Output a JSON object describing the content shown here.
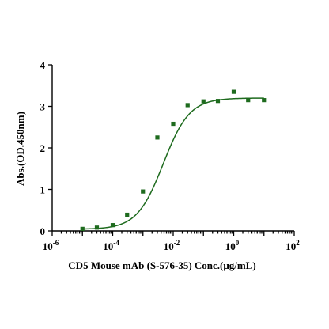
{
  "chart_data": {
    "type": "scatter",
    "title": "",
    "xlabel": "CD5 Mouse mAb (S-576-35) Conc.(μg/mL)",
    "ylabel": "Abs.(OD.450nm)",
    "x_scale": "log10",
    "xlim": [
      1e-06,
      100
    ],
    "ylim": [
      0,
      4
    ],
    "x_tick_labels": [
      {
        "base": "10",
        "exp": "-6",
        "value": 1e-06
      },
      {
        "base": "10",
        "exp": "-4",
        "value": 0.0001
      },
      {
        "base": "10",
        "exp": "-2",
        "value": 0.01
      },
      {
        "base": "10",
        "exp": "0",
        "value": 1
      },
      {
        "base": "10",
        "exp": "2",
        "value": 100
      }
    ],
    "y_ticks": [
      "0",
      "1",
      "2",
      "3",
      "4"
    ],
    "grid": false,
    "legend": "none",
    "colors": {
      "series": "#1e6b1e",
      "axis": "#000000"
    },
    "series": [
      {
        "marker": "square",
        "x": [
          1e-05,
          3e-05,
          0.0001,
          0.0003,
          0.001,
          0.003,
          0.01,
          0.03,
          0.1,
          0.3,
          1,
          3,
          10
        ],
        "y": [
          0.05,
          0.08,
          0.14,
          0.39,
          0.95,
          2.25,
          2.58,
          3.03,
          3.12,
          3.13,
          3.35,
          3.15,
          3.15
        ]
      }
    ],
    "fit_curve": {
      "model": "4PL",
      "bottom": 0.04,
      "top": 3.2,
      "ec50": 0.0047,
      "hill": 1.0
    }
  }
}
